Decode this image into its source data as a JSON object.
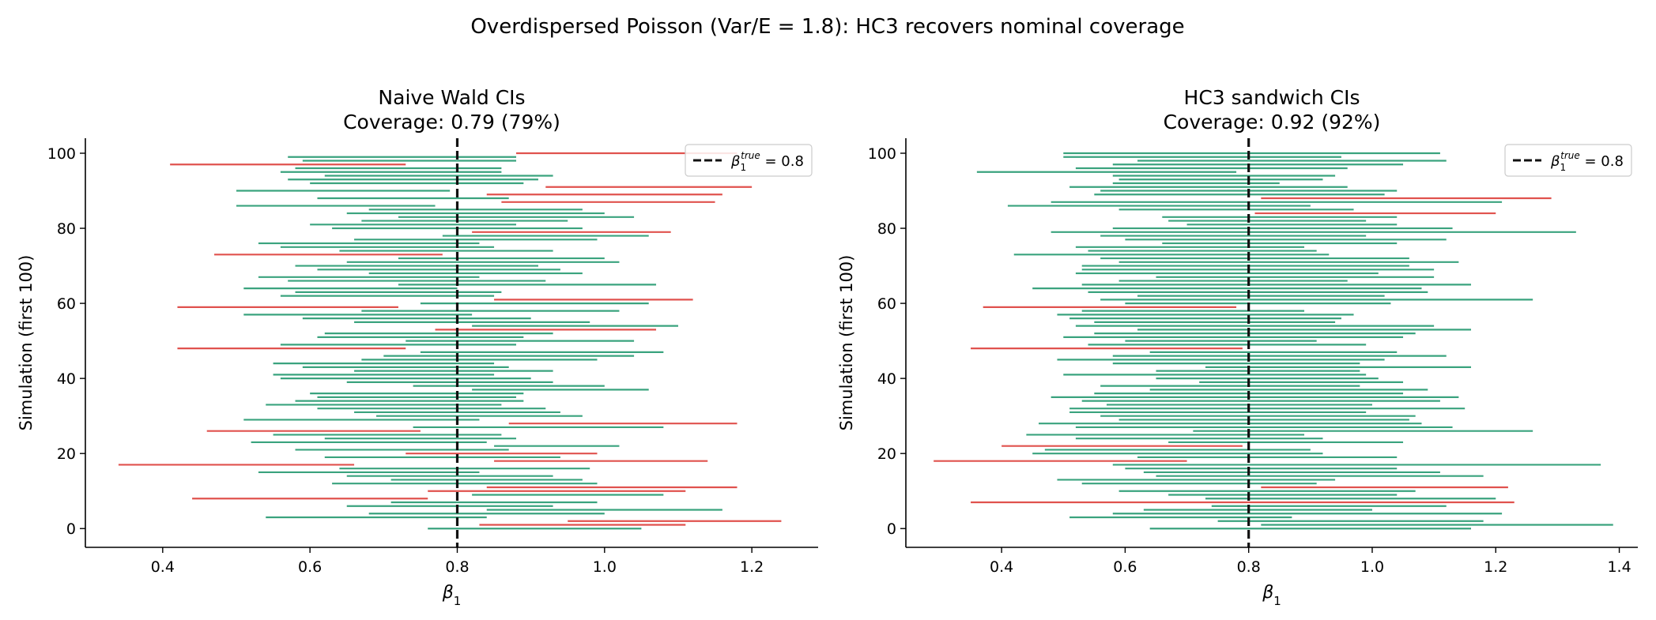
{
  "figure": {
    "suptitle": "Overdispersed Poisson (Var/E = 1.8): HC3 recovers nominal coverage"
  },
  "colors": {
    "covered": "#3aa37e",
    "missed": "#e0524e",
    "true_line": "#111111",
    "axis": "#000000"
  },
  "chart_data": [
    {
      "type": "interval",
      "title": "Naive Wald CIs",
      "subtitle": "Coverage: 0.79  (79%)",
      "xlabel": "β1",
      "ylabel": "Simulation (first 100)",
      "xlim": [
        0.295,
        1.29
      ],
      "ylim": [
        -5,
        104
      ],
      "xticks": [
        0.4,
        0.6,
        0.8,
        1.0,
        1.2
      ],
      "xtick_labels": [
        "0.4",
        "0.6",
        "0.8",
        "1.0",
        "1.2"
      ],
      "yticks": [
        0,
        20,
        40,
        60,
        80,
        100
      ],
      "ytick_labels": [
        "0",
        "20",
        "40",
        "60",
        "80",
        "100"
      ],
      "true_value": 0.8,
      "legend": {
        "label_main": "β",
        "label_sub": "1",
        "label_sup": "true",
        "label_suffix": " = 0.8",
        "placement": "top-right"
      },
      "grid": false,
      "intervals": [
        [
          0.76,
          1.05
        ],
        [
          0.83,
          1.11
        ],
        [
          0.95,
          1.24
        ],
        [
          0.54,
          0.84
        ],
        [
          0.68,
          1.0
        ],
        [
          0.84,
          1.16
        ],
        [
          0.65,
          0.93
        ],
        [
          0.71,
          0.99
        ],
        [
          0.44,
          0.76
        ],
        [
          0.82,
          1.08
        ],
        [
          0.76,
          1.11
        ],
        [
          0.84,
          1.18
        ],
        [
          0.63,
          0.99
        ],
        [
          0.71,
          0.97
        ],
        [
          0.65,
          0.93
        ],
        [
          0.53,
          0.83
        ],
        [
          0.64,
          0.98
        ],
        [
          0.34,
          0.66
        ],
        [
          0.85,
          1.14
        ],
        [
          0.62,
          0.94
        ],
        [
          0.73,
          0.99
        ],
        [
          0.58,
          0.87
        ],
        [
          0.85,
          1.02
        ],
        [
          0.52,
          0.84
        ],
        [
          0.62,
          0.88
        ],
        [
          0.55,
          0.86
        ],
        [
          0.46,
          0.75
        ],
        [
          0.74,
          1.08
        ],
        [
          0.87,
          1.18
        ],
        [
          0.51,
          0.83
        ],
        [
          0.69,
          0.97
        ],
        [
          0.66,
          0.94
        ],
        [
          0.61,
          0.92
        ],
        [
          0.54,
          0.86
        ],
        [
          0.58,
          0.89
        ],
        [
          0.61,
          0.88
        ],
        [
          0.6,
          0.89
        ],
        [
          0.82,
          1.06
        ],
        [
          0.74,
          1.0
        ],
        [
          0.65,
          0.93
        ],
        [
          0.56,
          0.9
        ],
        [
          0.55,
          0.85
        ],
        [
          0.66,
          0.93
        ],
        [
          0.59,
          0.87
        ],
        [
          0.55,
          0.85
        ],
        [
          0.67,
          0.99
        ],
        [
          0.7,
          1.04
        ],
        [
          0.75,
          1.08
        ],
        [
          0.42,
          0.73
        ],
        [
          0.56,
          0.88
        ],
        [
          0.73,
          1.04
        ],
        [
          0.61,
          0.89
        ],
        [
          0.62,
          0.93
        ],
        [
          0.77,
          1.07
        ],
        [
          0.82,
          1.1
        ],
        [
          0.66,
          0.98
        ],
        [
          0.59,
          0.9
        ],
        [
          0.51,
          0.82
        ],
        [
          0.67,
          1.02
        ],
        [
          0.42,
          0.72
        ],
        [
          0.75,
          1.06
        ],
        [
          0.85,
          1.12
        ],
        [
          0.56,
          0.85
        ],
        [
          0.58,
          0.86
        ],
        [
          0.51,
          0.8
        ],
        [
          0.72,
          1.07
        ],
        [
          0.57,
          0.92
        ],
        [
          0.53,
          0.83
        ],
        [
          0.68,
          0.97
        ],
        [
          0.61,
          0.94
        ],
        [
          0.58,
          0.91
        ],
        [
          0.65,
          1.02
        ],
        [
          0.72,
          1.0
        ],
        [
          0.47,
          0.78
        ],
        [
          0.64,
          0.93
        ],
        [
          0.56,
          0.85
        ],
        [
          0.53,
          0.83
        ],
        [
          0.66,
          0.99
        ],
        [
          0.78,
          1.06
        ],
        [
          0.82,
          1.09
        ],
        [
          0.63,
          0.97
        ],
        [
          0.6,
          0.88
        ],
        [
          0.67,
          0.95
        ],
        [
          0.72,
          1.04
        ],
        [
          0.65,
          1.0
        ],
        [
          0.68,
          0.97
        ],
        [
          0.5,
          0.77
        ],
        [
          0.86,
          1.15
        ],
        [
          0.61,
          0.87
        ],
        [
          0.84,
          1.16
        ],
        [
          0.5,
          0.79
        ],
        [
          0.92,
          1.2
        ],
        [
          0.6,
          0.89
        ],
        [
          0.57,
          0.91
        ],
        [
          0.62,
          0.93
        ],
        [
          0.56,
          0.86
        ],
        [
          0.58,
          0.86
        ],
        [
          0.41,
          0.73
        ],
        [
          0.59,
          0.88
        ],
        [
          0.57,
          0.88
        ],
        [
          0.88,
          1.18
        ]
      ],
      "missed_indices": [
        1,
        2,
        8,
        10,
        11,
        17,
        18,
        20,
        26,
        28,
        48,
        53,
        59,
        61,
        73,
        79,
        87,
        89,
        91,
        97,
        100
      ]
    },
    {
      "type": "interval",
      "title": "HC3 sandwich CIs",
      "subtitle": "Coverage: 0.92  (92%)",
      "xlabel": "β1",
      "ylabel": "Simulation (first 100)",
      "xlim": [
        0.245,
        1.43
      ],
      "ylim": [
        -5,
        104
      ],
      "xticks": [
        0.4,
        0.6,
        0.8,
        1.0,
        1.2,
        1.4
      ],
      "xtick_labels": [
        "0.4",
        "0.6",
        "0.8",
        "1.0",
        "1.2",
        "1.4"
      ],
      "yticks": [
        0,
        20,
        40,
        60,
        80,
        100
      ],
      "ytick_labels": [
        "0",
        "20",
        "40",
        "60",
        "80",
        "100"
      ],
      "true_value": 0.8,
      "legend": {
        "label_main": "β",
        "label_sub": "1",
        "label_sup": "true",
        "label_suffix": " = 0.8",
        "placement": "top-right"
      },
      "grid": false,
      "intervals": [
        [
          0.64,
          1.16
        ],
        [
          0.82,
          1.39
        ],
        [
          0.75,
          1.18
        ],
        [
          0.51,
          0.87
        ],
        [
          0.58,
          1.21
        ],
        [
          0.63,
          1.0
        ],
        [
          0.74,
          1.12
        ],
        [
          0.35,
          1.23
        ],
        [
          0.73,
          1.2
        ],
        [
          0.67,
          1.04
        ],
        [
          0.59,
          1.07
        ],
        [
          0.82,
          1.22
        ],
        [
          0.53,
          0.91
        ],
        [
          0.49,
          0.94
        ],
        [
          0.65,
          1.18
        ],
        [
          0.63,
          1.11
        ],
        [
          0.6,
          1.04
        ],
        [
          0.58,
          1.37
        ],
        [
          0.29,
          0.7
        ],
        [
          0.62,
          1.04
        ],
        [
          0.45,
          0.92
        ],
        [
          0.47,
          0.9
        ],
        [
          0.4,
          0.79
        ],
        [
          0.67,
          1.05
        ],
        [
          0.52,
          0.92
        ],
        [
          0.44,
          0.89
        ],
        [
          0.71,
          1.26
        ],
        [
          0.52,
          1.13
        ],
        [
          0.46,
          1.08
        ],
        [
          0.59,
          1.06
        ],
        [
          0.56,
          1.07
        ],
        [
          0.51,
          0.99
        ],
        [
          0.51,
          1.15
        ],
        [
          0.57,
          1.0
        ],
        [
          0.53,
          1.11
        ],
        [
          0.48,
          1.14
        ],
        [
          0.55,
          1.05
        ],
        [
          0.64,
          1.09
        ],
        [
          0.56,
          0.98
        ],
        [
          0.72,
          1.05
        ],
        [
          0.65,
          1.01
        ],
        [
          0.5,
          0.99
        ],
        [
          0.65,
          0.98
        ],
        [
          0.73,
          1.16
        ],
        [
          0.58,
          0.98
        ],
        [
          0.49,
          1.02
        ],
        [
          0.58,
          1.12
        ],
        [
          0.64,
          1.04
        ],
        [
          0.35,
          0.79
        ],
        [
          0.54,
          0.99
        ],
        [
          0.6,
          0.91
        ],
        [
          0.5,
          1.05
        ],
        [
          0.55,
          1.07
        ],
        [
          0.62,
          1.16
        ],
        [
          0.52,
          1.1
        ],
        [
          0.55,
          0.94
        ],
        [
          0.51,
          0.95
        ],
        [
          0.49,
          0.97
        ],
        [
          0.53,
          0.89
        ],
        [
          0.37,
          0.78
        ],
        [
          0.6,
          1.03
        ],
        [
          0.56,
          1.26
        ],
        [
          0.62,
          1.02
        ],
        [
          0.54,
          1.09
        ],
        [
          0.45,
          1.08
        ],
        [
          0.53,
          1.16
        ],
        [
          0.59,
          0.96
        ],
        [
          0.65,
          1.1
        ],
        [
          0.52,
          1.01
        ],
        [
          0.53,
          1.1
        ],
        [
          0.53,
          1.06
        ],
        [
          0.59,
          1.14
        ],
        [
          0.56,
          1.06
        ],
        [
          0.42,
          0.93
        ],
        [
          0.54,
          0.91
        ],
        [
          0.52,
          0.89
        ],
        [
          0.66,
          1.04
        ],
        [
          0.6,
          1.12
        ],
        [
          0.56,
          0.99
        ],
        [
          0.48,
          1.33
        ],
        [
          0.58,
          1.13
        ],
        [
          0.7,
          1.04
        ],
        [
          0.67,
          0.99
        ],
        [
          0.66,
          1.04
        ],
        [
          0.81,
          1.2
        ],
        [
          0.59,
          0.97
        ],
        [
          0.41,
          0.9
        ],
        [
          0.48,
          1.21
        ],
        [
          0.82,
          1.29
        ],
        [
          0.55,
          1.02
        ],
        [
          0.56,
          1.04
        ],
        [
          0.51,
          0.96
        ],
        [
          0.58,
          0.85
        ],
        [
          0.59,
          0.92
        ],
        [
          0.58,
          0.94
        ],
        [
          0.36,
          0.78
        ],
        [
          0.52,
          0.96
        ],
        [
          0.58,
          1.05
        ],
        [
          0.62,
          1.12
        ],
        [
          0.5,
          0.95
        ],
        [
          0.5,
          1.11
        ]
      ],
      "missed_indices": [
        7,
        11,
        18,
        22,
        48,
        59,
        84,
        88
      ]
    }
  ]
}
